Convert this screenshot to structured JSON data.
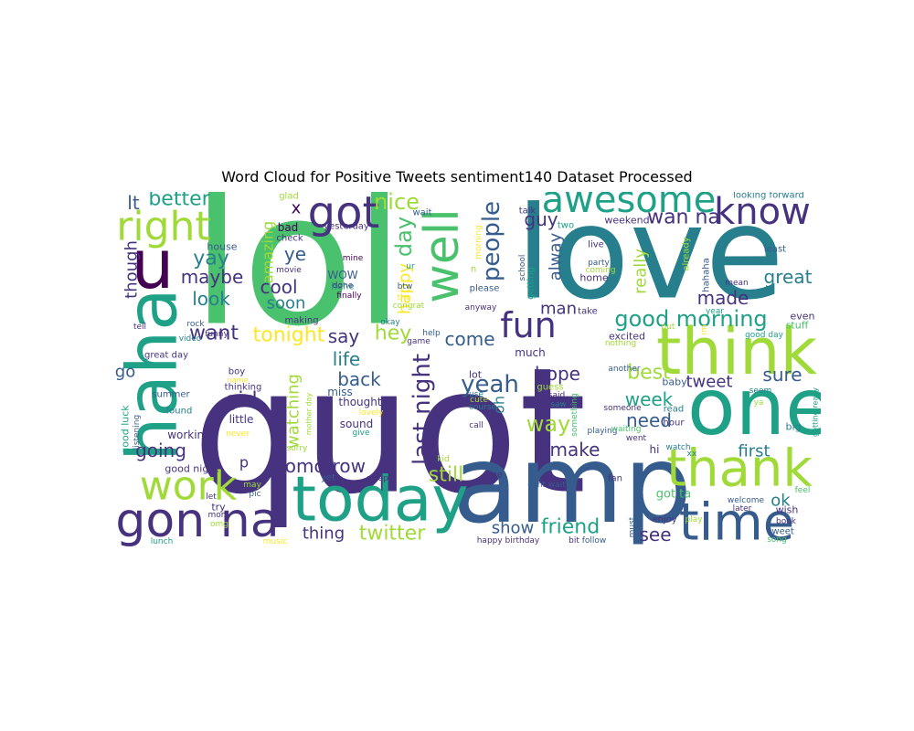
{
  "figure": {
    "title": "Word Cloud for Positive Tweets sentiment140 Dataset Processed"
  },
  "cloud": {
    "words": [
      "quot",
      "love",
      "lol",
      "amp",
      "one",
      "think",
      "today",
      "thank",
      "haha",
      "time",
      "gon na",
      "work",
      "got",
      "awesome",
      "right",
      "u",
      "well",
      "know",
      "fun",
      "good morning",
      "tonight",
      "hey",
      "last night",
      "people",
      "yeah",
      "nice",
      "day",
      "lt",
      "better",
      "cool",
      "amazing",
      "ye",
      "yay",
      "maybe",
      "look",
      "want",
      "soon",
      "say",
      "come",
      "life",
      "back",
      "hope",
      "best",
      "week",
      "need",
      "tweet",
      "sure",
      "great",
      "made",
      "wan na",
      "guy",
      "alway",
      "really",
      "happy",
      "man",
      "oh",
      "still",
      "make",
      "way",
      "going",
      "though",
      "watching",
      "girl",
      "go",
      "tomorrow",
      "twitter",
      "friend",
      "show",
      "see",
      "first",
      "thing",
      "ok",
      "p",
      "x",
      "WOW",
      "bad",
      "glad",
      "house",
      "check",
      "yesterday",
      "mine",
      "done",
      "hehe",
      "finally",
      "movie",
      "wait",
      "ur",
      "btw",
      "tho",
      "please",
      "anyway",
      "getting",
      "school",
      "n",
      "morning",
      "talk",
      "two",
      "weekend",
      "live",
      "party",
      "coming",
      "home",
      "already",
      "hahaha",
      "least",
      "looking forward",
      "even",
      "stuff",
      "good day",
      "excited",
      "another",
      "much",
      "thought",
      "sound",
      "little",
      "thinking",
      "summer",
      "good luck",
      "listening",
      "working",
      "found",
      "good night",
      "boy",
      "name",
      "never",
      "sorry",
      "mother day",
      "lot",
      "use",
      "cute",
      "course",
      "call",
      "give",
      "guess",
      "said",
      "saw",
      "world",
      "something",
      "someone",
      "playing",
      "went",
      "watch",
      "hour",
      "read",
      "baby",
      "big",
      "getting ready",
      "seem",
      "ya",
      "xx",
      "hi",
      "waiting",
      "kid",
      "free",
      "sleep",
      "fan",
      "bit",
      "follow",
      "enjoy",
      "play",
      "welcome",
      "later",
      "book",
      "sweet",
      "song",
      "wish",
      "feel",
      "must",
      "happy birthday",
      "lunch",
      "music",
      "mom",
      "omg",
      "pic",
      "let",
      "try",
      "may",
      "cant wait",
      "yet",
      "lovely",
      "game",
      "help",
      "okay",
      "congrat",
      "miss",
      "making",
      "funny",
      "rock",
      "tell",
      "video",
      "great day",
      "take",
      "put",
      "nothing",
      "mean",
      "year",
      "im",
      "got ta"
    ]
  },
  "colors": {
    "palette": [
      "#440154",
      "#46327e",
      "#365c8d",
      "#277f8e",
      "#1fa187",
      "#4ac16d",
      "#a0da39",
      "#fde725",
      "#bddf26",
      "#2db27d"
    ]
  }
}
